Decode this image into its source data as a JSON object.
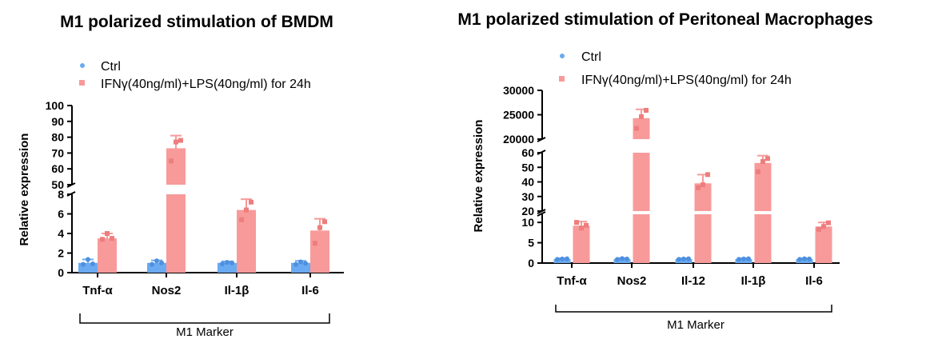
{
  "chart_data": [
    {
      "type": "bar",
      "title": "M1 polarized stimulation of BMDM",
      "ylabel": "Relative expression",
      "group_label": "M1 Marker",
      "categories": [
        "Tnf-α",
        "Nos2",
        "Il-1β",
        "Il-6"
      ],
      "y_segments": [
        {
          "range": [
            0,
            8
          ],
          "ticks": [
            0,
            2,
            4,
            6,
            8
          ]
        },
        {
          "range": [
            50,
            100
          ],
          "ticks": [
            50,
            60,
            70,
            80,
            90,
            100
          ]
        }
      ],
      "legend_position": "top-left",
      "grid": false,
      "series": [
        {
          "name": "Ctrl",
          "color": "#6aaaf0",
          "values": [
            1.0,
            1.0,
            1.0,
            1.0
          ],
          "errors": [
            0.35,
            0.25,
            0.15,
            0.2
          ],
          "points": [
            [
              0.85,
              1.35,
              0.9
            ],
            [
              0.85,
              1.2,
              1.0
            ],
            [
              0.9,
              1.05,
              1.0
            ],
            [
              0.85,
              1.1,
              0.95
            ]
          ]
        },
        {
          "name": "IFNγ(40ng/ml)+LPS(40ng/ml) for 24h",
          "color": "#f89a9a",
          "values": [
            3.5,
            73,
            6.4,
            4.3
          ],
          "errors": [
            0.5,
            8,
            1.1,
            1.2
          ],
          "points": [
            [
              3.4,
              4.0,
              3.5
            ],
            [
              65,
              77,
              78
            ],
            [
              5.4,
              6.4,
              7.2
            ],
            [
              3.0,
              4.6,
              5.2
            ]
          ]
        }
      ]
    },
    {
      "type": "bar",
      "title": "M1 polarized stimulation of Peritoneal Macrophages",
      "ylabel": "Relative expression",
      "group_label": "M1 Marker",
      "categories": [
        "Tnf-α",
        "Nos2",
        "Il-12",
        "Il-1β",
        "Il-6"
      ],
      "y_segments": [
        {
          "range": [
            0,
            12
          ],
          "ticks": [
            0,
            5,
            10
          ]
        },
        {
          "range": [
            20,
            60
          ],
          "ticks": [
            20,
            30,
            40,
            50,
            60
          ]
        },
        {
          "range": [
            20000,
            30000
          ],
          "ticks": [
            20000,
            25000,
            30000
          ]
        }
      ],
      "legend_position": "top-left",
      "grid": false,
      "series": [
        {
          "name": "Ctrl",
          "color": "#6aaaf0",
          "values": [
            1.0,
            1.0,
            1.0,
            1.0,
            1.0
          ],
          "errors": [
            0.15,
            0.2,
            0.15,
            0.15,
            0.15
          ],
          "points": [
            [
              0.9,
              1.0,
              1.05
            ],
            [
              0.9,
              1.1,
              1.0
            ],
            [
              0.9,
              1.0,
              1.05
            ],
            [
              0.9,
              1.0,
              1.05
            ],
            [
              0.9,
              1.05,
              1.0
            ]
          ]
        },
        {
          "name": "IFNγ(40ng/ml)+LPS(40ng/ml) for 24h",
          "color": "#f89a9a",
          "values": [
            9.2,
            24300,
            39,
            53,
            9.0
          ],
          "errors": [
            1.0,
            1800,
            6,
            5,
            1.0
          ],
          "points": [
            [
              10.0,
              8.6,
              9.3
            ],
            [
              22200,
              24600,
              25900
            ],
            [
              36,
              38,
              45
            ],
            [
              47,
              54,
              56
            ],
            [
              8.3,
              9.0,
              9.9
            ]
          ]
        }
      ]
    }
  ]
}
